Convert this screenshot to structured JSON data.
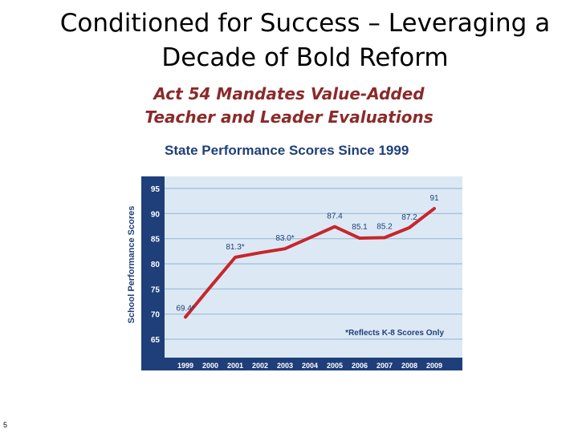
{
  "slide": {
    "title": "Conditioned for Success – Leveraging a Decade of Bold Reform",
    "subtitle_line1": "Act 54 Mandates Value-Added",
    "subtitle_line2": "Teacher and Leader Evaluations",
    "page_number": "5"
  },
  "chart_data": {
    "type": "line",
    "title": "State Performance Scores Since 1999",
    "ylabel": "School Performance Scores",
    "xlabel": "",
    "x": [
      "1999",
      "2000",
      "2001",
      "2002",
      "2003",
      "2004",
      "2005",
      "2006",
      "2007",
      "2008",
      "2009"
    ],
    "series": [
      {
        "values": [
          69.4,
          75.4,
          81.3,
          82.2,
          83.0,
          85.2,
          87.4,
          85.1,
          85.2,
          87.2,
          91
        ],
        "point_labels": [
          "69.4*",
          "",
          "81.3*",
          "",
          "83.0*",
          "",
          "87.4",
          "85.1",
          "85.2",
          "87.2",
          "91"
        ]
      }
    ],
    "ylim": [
      65,
      95
    ],
    "yticks": [
      65,
      70,
      75,
      80,
      85,
      90,
      95
    ],
    "grid": true,
    "footnote": "*Reflects K-8 Scores Only",
    "colors": {
      "line": "#c8262c",
      "frame": "#1f3f7a",
      "plot_bg": "#dce9f5",
      "grid": "#9fbad6"
    }
  }
}
